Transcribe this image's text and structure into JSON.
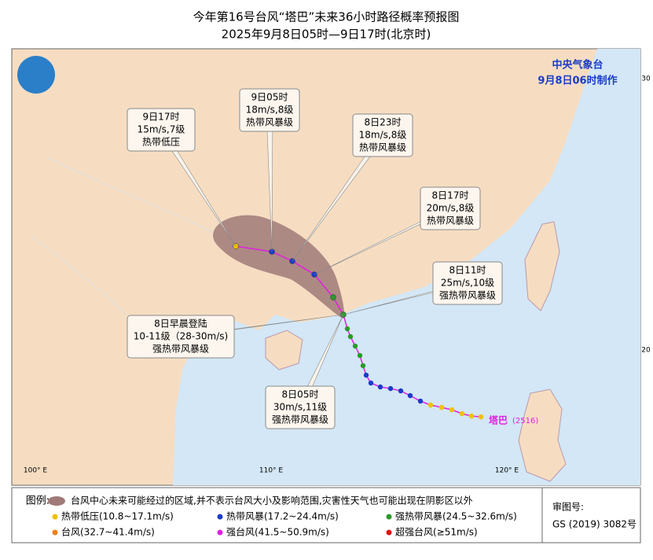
{
  "header": {
    "title": "今年第16号台风“塔巴”未来36小时路径概率预报图",
    "subtitle": "2025年9月8日05时—9日17时(北京时)"
  },
  "agency": {
    "name": "中央气象台",
    "issued": "9月8日06时制作"
  },
  "callouts": [
    {
      "lines": [
        "9日17时",
        "15m/s,7级",
        "热带低压"
      ]
    },
    {
      "lines": [
        "9日05时",
        "18m/s,8级",
        "热带风暴级"
      ]
    },
    {
      "lines": [
        "8日23时",
        "18m/s,8级",
        "热带风暴级"
      ]
    },
    {
      "lines": [
        "8日17时",
        "20m/s,8级",
        "热带风暴级"
      ]
    },
    {
      "lines": [
        "8日11时",
        "25m/s,10级",
        "强热带风暴级"
      ]
    },
    {
      "lines": [
        "8日早晨登陆",
        "10-11级（28-30m/s)",
        "强热带风暴级"
      ]
    },
    {
      "lines": [
        "8日05时",
        "30m/s,11级",
        "强热带风暴级"
      ]
    }
  ],
  "storm_label": {
    "name": "塔巴",
    "code": "(2516)"
  },
  "axis_labels": {
    "lon": [
      "100° E",
      "110° E",
      "120° E"
    ],
    "lat": [
      "30",
      "20"
    ]
  },
  "legend": {
    "title": "图例:",
    "cone": "台风中心未来可能经过的区域,并不表示台风大小及影响范围,灾害性天气也可能出现在阴影区以外",
    "items": [
      {
        "label": "热带低压(10.8~17.1m/s)",
        "color": "#f0c000"
      },
      {
        "label": "热带风暴(17.2~24.4m/s)",
        "color": "#1a3cc8"
      },
      {
        "label": "强热带风暴(24.5~32.6m/s)",
        "color": "#2a9a2a"
      },
      {
        "label": "台风(32.7~41.4m/s)",
        "color": "#f08020"
      },
      {
        "label": "强台风(41.5~50.9m/s)",
        "color": "#e020e0"
      },
      {
        "label": "超强台风(≥51m/s)",
        "color": "#e01010"
      }
    ]
  },
  "approval": {
    "label": "审图号:",
    "number": "GS (2019) 3082号"
  }
}
